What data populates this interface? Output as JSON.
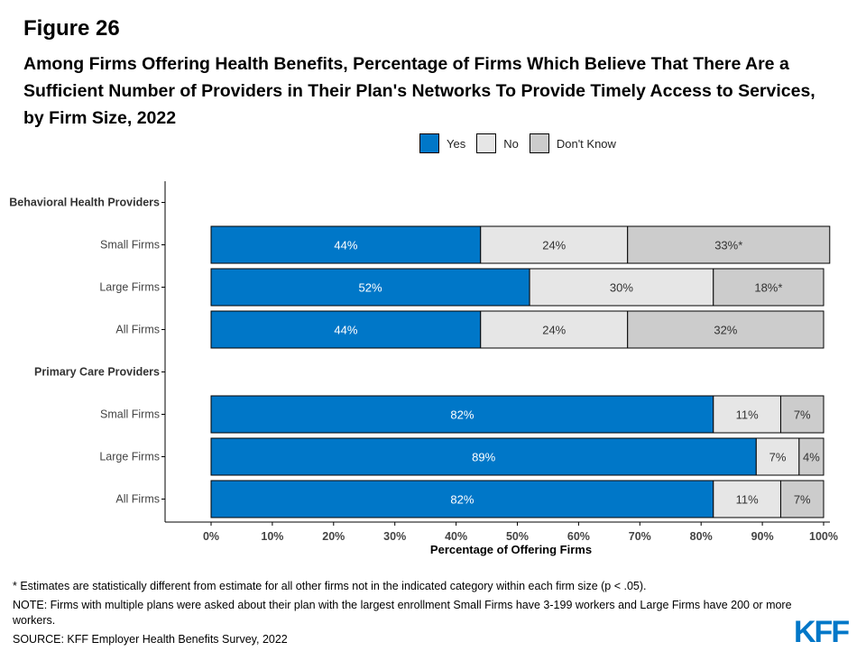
{
  "figure_label": "Figure 26",
  "title": "Among Firms Offering Health Benefits, Percentage of Firms Which Believe That There Are a Sufficient Number of Providers in Their Plan's Networks To Provide Timely Access to Services, by Firm Size, 2022",
  "legend": [
    {
      "label": "Yes",
      "color": "#0077c8"
    },
    {
      "label": "No",
      "color": "#e6e6e6"
    },
    {
      "label": "Don't Know",
      "color": "#cccccc"
    }
  ],
  "chart_data": {
    "type": "bar",
    "orientation": "horizontal",
    "stacked": true,
    "xlabel": "Percentage of Offering Firms",
    "xlim": [
      0,
      100
    ],
    "x_ticks": [
      "0%",
      "10%",
      "20%",
      "30%",
      "40%",
      "50%",
      "60%",
      "70%",
      "80%",
      "90%",
      "100%"
    ],
    "legend_position": "top",
    "series_names": [
      "Yes",
      "No",
      "Don't Know"
    ],
    "series_colors": [
      "#0077c8",
      "#e6e6e6",
      "#cccccc"
    ],
    "rows": [
      {
        "label": "Behavioral Health Providers",
        "header": true
      },
      {
        "label": "Small Firms",
        "values": [
          44,
          24,
          33
        ],
        "labels": [
          "44%",
          "24%",
          "33%*"
        ]
      },
      {
        "label": "Large Firms",
        "values": [
          52,
          30,
          18
        ],
        "labels": [
          "52%",
          "30%",
          "18%*"
        ]
      },
      {
        "label": "All Firms",
        "values": [
          44,
          24,
          32
        ],
        "labels": [
          "44%",
          "24%",
          "32%"
        ]
      },
      {
        "label": "Primary Care Providers",
        "header": true
      },
      {
        "label": "Small Firms",
        "values": [
          82,
          11,
          7
        ],
        "labels": [
          "82%",
          "11%",
          "7%"
        ]
      },
      {
        "label": "Large Firms",
        "values": [
          89,
          7,
          4
        ],
        "labels": [
          "89%",
          "7%",
          "4%"
        ]
      },
      {
        "label": "All Firms",
        "values": [
          82,
          11,
          7
        ],
        "labels": [
          "82%",
          "11%",
          "7%"
        ]
      }
    ]
  },
  "notes": [
    "* Estimates are statistically different from estimate for all other firms not in the indicated category within each firm size (p < .05).",
    "NOTE: Firms with multiple plans were asked about their plan with the largest enrollment Small Firms have 3-199 workers and Large Firms have 200 or more workers.",
    "SOURCE: KFF Employer Health Benefits Survey, 2022"
  ],
  "logo_text": "KFF"
}
